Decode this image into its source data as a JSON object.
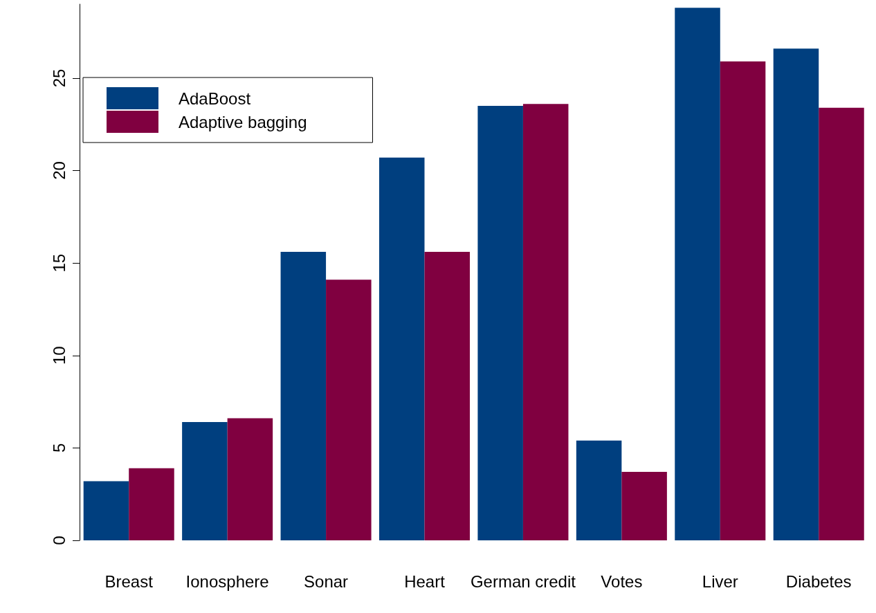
{
  "chart_data": {
    "type": "bar",
    "categories": [
      "Breast",
      "Ionosphere",
      "Sonar",
      "Heart",
      "German credit",
      "Votes",
      "Liver",
      "Diabetes"
    ],
    "series": [
      {
        "name": "AdaBoost",
        "color": "#003f7f",
        "values": [
          3.2,
          6.4,
          15.6,
          20.7,
          23.5,
          5.4,
          28.8,
          26.6
        ]
      },
      {
        "name": "Adaptive bagging",
        "color": "#800040",
        "values": [
          3.9,
          6.6,
          14.1,
          15.6,
          23.6,
          3.7,
          25.9,
          23.4
        ]
      }
    ],
    "ylim": [
      0,
      29
    ],
    "yticks": [
      0,
      5,
      10,
      15,
      20,
      25
    ],
    "grid": false,
    "legend": "top left"
  }
}
